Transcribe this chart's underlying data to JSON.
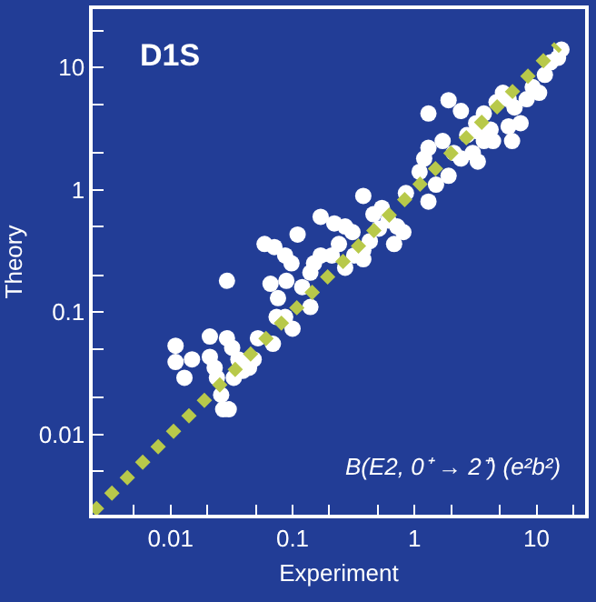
{
  "chart_data": {
    "type": "scatter",
    "title": "D1S",
    "xlabel": "Experiment",
    "ylabel": "Theory",
    "annotations": [
      "B(E2, 0⁺ → 2⁺) (e²b²)"
    ],
    "log": "xy",
    "grid": false,
    "xlim": [
      0.0023,
      25
    ],
    "ylim": [
      0.0022,
      30
    ],
    "xticks": [
      {
        "value": 0.005,
        "label": null
      },
      0.01,
      {
        "value": 0.02,
        "label": null
      },
      {
        "value": 0.05,
        "label": null
      },
      0.1,
      {
        "value": 0.2,
        "label": null
      },
      {
        "value": 0.5,
        "label": null
      },
      1,
      {
        "value": 2,
        "label": null
      },
      {
        "value": 5,
        "label": null
      },
      10,
      {
        "value": 20,
        "label": null
      }
    ],
    "yticks": [
      {
        "value": 0.005,
        "label": null
      },
      0.01,
      {
        "value": 0.02,
        "label": null
      },
      {
        "value": 0.05,
        "label": null
      },
      0.1,
      {
        "value": 0.2,
        "label": null
      },
      {
        "value": 0.5,
        "label": null
      },
      1,
      {
        "value": 2,
        "label": null
      },
      {
        "value": 5,
        "label": null
      },
      10,
      {
        "value": 20,
        "label": null
      }
    ],
    "series": [
      {
        "marker": "circle",
        "color": "#ffffff",
        "x": [
          0.011,
          0.013,
          0.011,
          0.015,
          0.021,
          0.021,
          0.023,
          0.024,
          0.027,
          0.03,
          0.026,
          0.029,
          0.032,
          0.036,
          0.039,
          0.044,
          0.048,
          0.033,
          0.029,
          0.059,
          0.071,
          0.11,
          0.087,
          0.098,
          0.066,
          0.076,
          0.089,
          0.12,
          0.14,
          0.15,
          0.17,
          0.14,
          0.1,
          0.069,
          0.074,
          0.052,
          0.087,
          0.17,
          0.22,
          0.27,
          0.31,
          0.24,
          0.21,
          0.27,
          0.32,
          0.38,
          0.43,
          0.38,
          0.46,
          0.54,
          0.61,
          0.72,
          0.81,
          0.68,
          0.38,
          0.51,
          0.85,
          1.1,
          1.2,
          1.3,
          1.5,
          1.9,
          1.3,
          1.7,
          2.1,
          2.4,
          2.7,
          3.2,
          3.7,
          1.3,
          1.9,
          2.4,
          3.7,
          3.0,
          3.3,
          4.7,
          5.3,
          5.9,
          6.6,
          7.4,
          4.2,
          6.3,
          8.3,
          9.3,
          10.5,
          11.7,
          13,
          15,
          16,
          4.4,
          3.3,
          5.9
        ],
        "values": [
          0.053,
          0.029,
          0.039,
          0.041,
          0.063,
          0.043,
          0.035,
          0.029,
          0.016,
          0.016,
          0.021,
          0.061,
          0.051,
          0.041,
          0.033,
          0.035,
          0.041,
          0.029,
          0.18,
          0.36,
          0.34,
          0.43,
          0.29,
          0.25,
          0.17,
          0.13,
          0.18,
          0.16,
          0.21,
          0.25,
          0.29,
          0.11,
          0.073,
          0.055,
          0.091,
          0.061,
          0.091,
          0.6,
          0.53,
          0.5,
          0.45,
          0.36,
          0.29,
          0.23,
          0.29,
          0.32,
          0.38,
          0.89,
          0.63,
          0.71,
          0.56,
          0.5,
          0.45,
          0.36,
          0.27,
          0.48,
          0.94,
          1.4,
          1.8,
          0.8,
          1.1,
          1.3,
          2.2,
          2.5,
          2.0,
          1.8,
          2.8,
          3.5,
          4.2,
          4.2,
          5.4,
          4.4,
          2.5,
          2.0,
          1.7,
          5.2,
          6.2,
          5.5,
          4.7,
          3.5,
          3.1,
          2.5,
          5.5,
          6.9,
          6.2,
          8.7,
          11,
          12,
          14,
          2.5,
          3.0,
          3.3
        ]
      },
      {
        "type": "line",
        "color": "#b8c94a",
        "line_style": "dotted",
        "x": [
          0.0023,
          15
        ],
        "values": [
          0.0023,
          15
        ]
      }
    ]
  }
}
